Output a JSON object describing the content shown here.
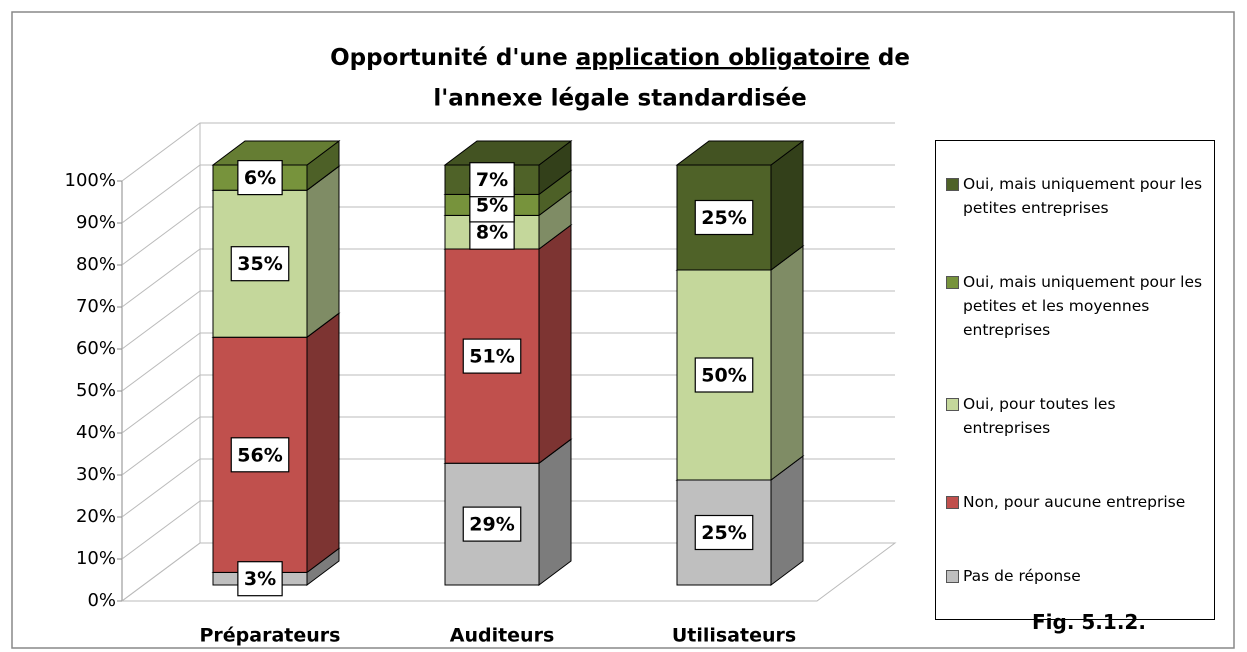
{
  "chart_data": {
    "type": "bar3d_stacked",
    "title_lines": [
      [
        "Opportunité d'une ",
        "application obligatoire",
        " de"
      ],
      [
        "l'annexe légale standardisée"
      ]
    ],
    "categories": [
      "Préparateurs",
      "Auditeurs",
      "Utilisateurs"
    ],
    "series": [
      {
        "name": "Pas de réponse",
        "color": "#bfbfbf",
        "values": [
          3,
          29,
          25
        ],
        "value_labels": [
          "3%",
          "29%",
          "25%"
        ]
      },
      {
        "name": "Non, pour aucune entreprise",
        "color": "#c0504d",
        "values": [
          56,
          51,
          null
        ],
        "value_labels": [
          "56%",
          "51%",
          null
        ]
      },
      {
        "name": "Oui, pour toutes les entreprises",
        "color": "#c4d79b",
        "values": [
          35,
          8,
          50
        ],
        "value_labels": [
          "35%",
          "8%",
          "50%"
        ]
      },
      {
        "name": "Oui, mais uniquement pour les petites et les moyennes entreprises",
        "color": "#77933c",
        "values": [
          6,
          5,
          null
        ],
        "value_labels": [
          "6%",
          "5%",
          null
        ]
      },
      {
        "name": "Oui, mais uniquement pour les petites entreprises",
        "color": "#4f6228",
        "values": [
          null,
          7,
          25
        ],
        "value_labels": [
          null,
          "7%",
          "25%"
        ]
      }
    ],
    "ylim": [
      0,
      100
    ],
    "yticks": [
      {
        "value": 0,
        "label": "0%"
      },
      {
        "value": 10,
        "label": "10%"
      },
      {
        "value": 20,
        "label": "20%"
      },
      {
        "value": 30,
        "label": "30%"
      },
      {
        "value": 40,
        "label": "40%"
      },
      {
        "value": 50,
        "label": "50%"
      },
      {
        "value": 60,
        "label": "60%"
      },
      {
        "value": 70,
        "label": "70%"
      },
      {
        "value": 80,
        "label": "80%"
      },
      {
        "value": 90,
        "label": "90%"
      },
      {
        "value": 100,
        "label": "100%"
      }
    ],
    "grid": true,
    "legend": "right",
    "annotation": "Fig. 5.1.2."
  }
}
